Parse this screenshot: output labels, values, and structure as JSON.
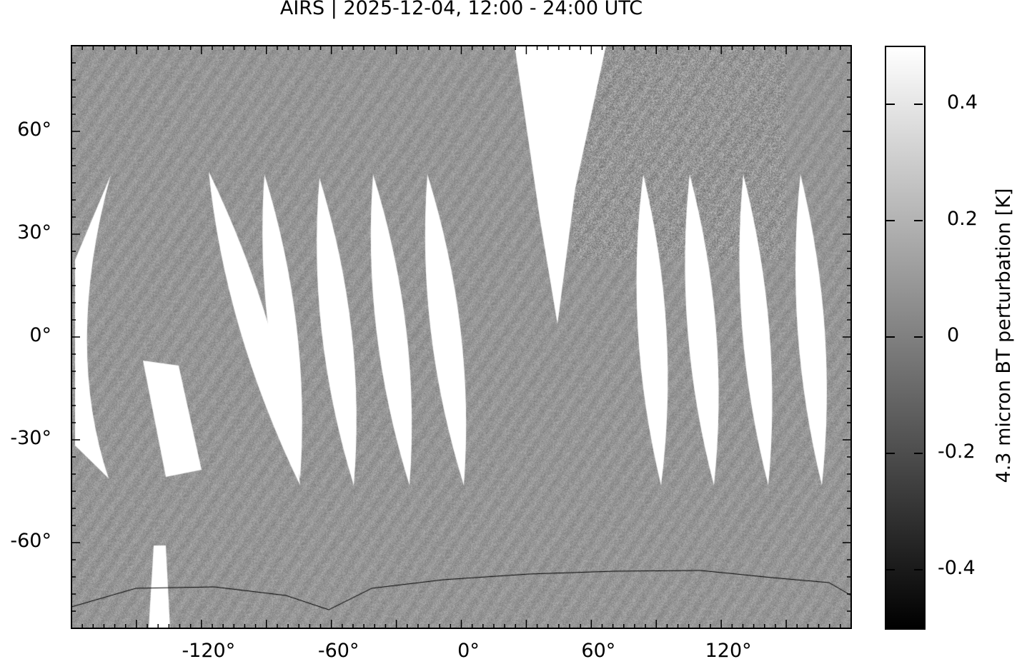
{
  "title": "AIRS | 2025-12-04, 12:00 - 24:00 UTC",
  "map": {
    "projection": "equirectangular",
    "lon_range": [
      -180,
      180
    ],
    "lat_range": [
      -85,
      85
    ],
    "x_ticks": [
      {
        "value": -120,
        "label": "-120°"
      },
      {
        "value": -60,
        "label": "-60°"
      },
      {
        "value": 0,
        "label": "0°"
      },
      {
        "value": 60,
        "label": "60°"
      },
      {
        "value": 120,
        "label": "120°"
      }
    ],
    "y_ticks": [
      {
        "value": 60,
        "label": "60°"
      },
      {
        "value": 30,
        "label": "30°"
      },
      {
        "value": 0,
        "label": "0°"
      },
      {
        "value": -30,
        "label": "-30°"
      },
      {
        "value": -60,
        "label": "-60°"
      }
    ],
    "minor_tick_step_deg": 5,
    "colormap": "grayscale",
    "no_data_color": "#ffffff",
    "coastlines": "black"
  },
  "colorbar": {
    "label": "4.3 micron BT perturbation [K]",
    "range": [
      -0.5,
      0.5
    ],
    "ticks": [
      {
        "value": 0.4,
        "label": "0.4"
      },
      {
        "value": 0.2,
        "label": "0.2"
      },
      {
        "value": 0,
        "label": "0"
      },
      {
        "value": -0.2,
        "label": "-0.2"
      },
      {
        "value": -0.4,
        "label": "-0.4"
      }
    ]
  }
}
